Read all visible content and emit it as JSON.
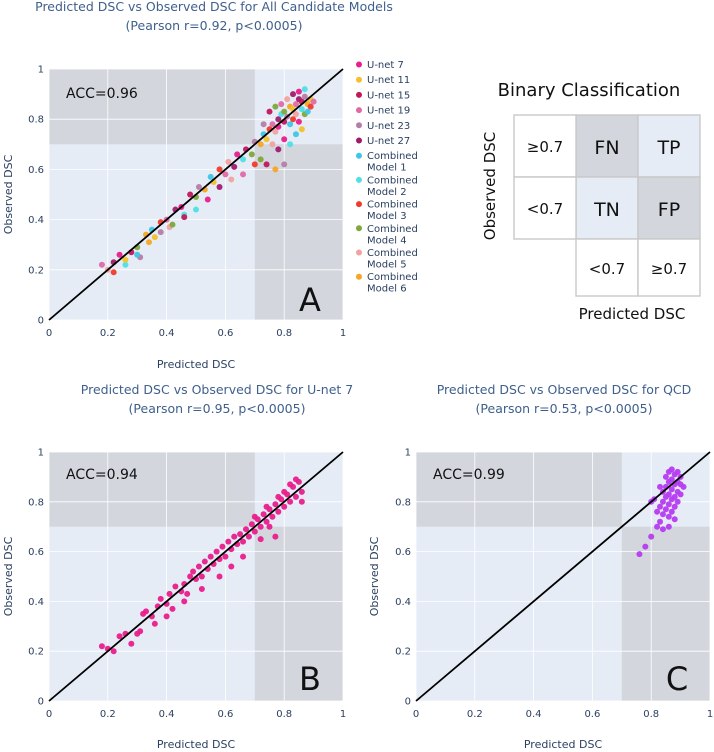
{
  "chart_data": [
    {
      "type": "scatter",
      "title": "Predicted DSC vs Observed DSC for All Candidate Models",
      "subtitle": "(Pearson r=0.92, p<0.0005)",
      "xlabel": "Predicted DSC",
      "ylabel": "Observed DSC",
      "xlim": [
        0,
        1
      ],
      "ylim": [
        0,
        1
      ],
      "xticks": [
        "0",
        "0.2",
        "0.4",
        "0.6",
        "0.8",
        "1"
      ],
      "yticks": [
        "0",
        "0.2",
        "0.4",
        "0.6",
        "0.8",
        "1"
      ],
      "threshold": 0.7,
      "accuracy_label": "ACC=0.96",
      "panel_label": "A",
      "legend": [
        {
          "name": "U-net 7",
          "color": "#e91e8c"
        },
        {
          "name": "U-net 11",
          "color": "#f2c12e"
        },
        {
          "name": "U-net 15",
          "color": "#c2185b"
        },
        {
          "name": "U-net 19",
          "color": "#e06aa6"
        },
        {
          "name": "U-net 23",
          "color": "#b57ea6"
        },
        {
          "name": "U-net 27",
          "color": "#a01c6b"
        },
        {
          "name": "Combined Model 1",
          "color": "#3ec6e8"
        },
        {
          "name": "Combined Model 2",
          "color": "#4fe0e6"
        },
        {
          "name": "Combined Model 3",
          "color": "#ef3b2c"
        },
        {
          "name": "Combined Model 4",
          "color": "#7ea83a"
        },
        {
          "name": "Combined Model 5",
          "color": "#f0a3a0"
        },
        {
          "name": "Combined Model 6",
          "color": "#f5a623"
        }
      ],
      "points": [
        [
          0.18,
          0.22
        ],
        [
          0.2,
          0.2
        ],
        [
          0.22,
          0.23
        ],
        [
          0.24,
          0.26
        ],
        [
          0.26,
          0.22
        ],
        [
          0.28,
          0.27
        ],
        [
          0.3,
          0.29
        ],
        [
          0.31,
          0.25
        ],
        [
          0.33,
          0.34
        ],
        [
          0.35,
          0.36
        ],
        [
          0.36,
          0.33
        ],
        [
          0.38,
          0.39
        ],
        [
          0.4,
          0.4
        ],
        [
          0.41,
          0.37
        ],
        [
          0.43,
          0.44
        ],
        [
          0.45,
          0.45
        ],
        [
          0.46,
          0.42
        ],
        [
          0.48,
          0.5
        ],
        [
          0.5,
          0.49
        ],
        [
          0.51,
          0.53
        ],
        [
          0.53,
          0.52
        ],
        [
          0.55,
          0.57
        ],
        [
          0.56,
          0.55
        ],
        [
          0.58,
          0.6
        ],
        [
          0.6,
          0.58
        ],
        [
          0.61,
          0.63
        ],
        [
          0.63,
          0.61
        ],
        [
          0.64,
          0.66
        ],
        [
          0.66,
          0.64
        ],
        [
          0.67,
          0.68
        ],
        [
          0.69,
          0.66
        ],
        [
          0.7,
          0.71
        ],
        [
          0.72,
          0.7
        ],
        [
          0.73,
          0.74
        ],
        [
          0.74,
          0.72
        ],
        [
          0.75,
          0.76
        ],
        [
          0.76,
          0.78
        ],
        [
          0.77,
          0.75
        ],
        [
          0.78,
          0.8
        ],
        [
          0.78,
          0.77
        ],
        [
          0.79,
          0.82
        ],
        [
          0.8,
          0.79
        ],
        [
          0.8,
          0.83
        ],
        [
          0.81,
          0.81
        ],
        [
          0.82,
          0.85
        ],
        [
          0.82,
          0.78
        ],
        [
          0.83,
          0.84
        ],
        [
          0.83,
          0.8
        ],
        [
          0.84,
          0.86
        ],
        [
          0.84,
          0.82
        ],
        [
          0.85,
          0.88
        ],
        [
          0.85,
          0.79
        ],
        [
          0.86,
          0.84
        ],
        [
          0.86,
          0.87
        ],
        [
          0.87,
          0.82
        ],
        [
          0.87,
          0.89
        ],
        [
          0.88,
          0.86
        ],
        [
          0.88,
          0.83
        ],
        [
          0.89,
          0.88
        ],
        [
          0.89,
          0.85
        ],
        [
          0.9,
          0.87
        ],
        [
          0.76,
          0.7
        ],
        [
          0.78,
          0.68
        ],
        [
          0.8,
          0.72
        ],
        [
          0.82,
          0.7
        ],
        [
          0.74,
          0.62
        ],
        [
          0.72,
          0.64
        ],
        [
          0.8,
          0.62
        ],
        [
          0.77,
          0.6
        ],
        [
          0.84,
          0.74
        ],
        [
          0.86,
          0.76
        ],
        [
          0.7,
          0.62
        ],
        [
          0.66,
          0.58
        ],
        [
          0.62,
          0.56
        ],
        [
          0.58,
          0.53
        ],
        [
          0.54,
          0.48
        ],
        [
          0.5,
          0.44
        ],
        [
          0.46,
          0.41
        ],
        [
          0.42,
          0.38
        ],
        [
          0.38,
          0.35
        ],
        [
          0.34,
          0.31
        ],
        [
          0.3,
          0.26
        ],
        [
          0.26,
          0.24
        ],
        [
          0.22,
          0.19
        ],
        [
          0.79,
          0.86
        ],
        [
          0.81,
          0.88
        ],
        [
          0.83,
          0.9
        ],
        [
          0.85,
          0.91
        ],
        [
          0.87,
          0.92
        ],
        [
          0.75,
          0.83
        ],
        [
          0.77,
          0.85
        ],
        [
          0.73,
          0.78
        ]
      ]
    },
    {
      "type": "scatter",
      "title": "Predicted DSC vs Observed DSC for U-net 7",
      "subtitle": "(Pearson r=0.95, p<0.0005)",
      "xlabel": "Predicted DSC",
      "ylabel": "Observed DSC",
      "xlim": [
        0,
        1
      ],
      "ylim": [
        0,
        1
      ],
      "xticks": [
        "0",
        "0.2",
        "0.4",
        "0.6",
        "0.8",
        "1"
      ],
      "yticks": [
        "0",
        "0.2",
        "0.4",
        "0.6",
        "0.8",
        "1"
      ],
      "threshold": 0.7,
      "accuracy_label": "ACC=0.94",
      "panel_label": "B",
      "color": "#e91e8c",
      "points": [
        [
          0.18,
          0.22
        ],
        [
          0.2,
          0.21
        ],
        [
          0.22,
          0.2
        ],
        [
          0.24,
          0.26
        ],
        [
          0.26,
          0.27
        ],
        [
          0.28,
          0.23
        ],
        [
          0.31,
          0.28
        ],
        [
          0.32,
          0.35
        ],
        [
          0.33,
          0.36
        ],
        [
          0.35,
          0.34
        ],
        [
          0.37,
          0.38
        ],
        [
          0.38,
          0.41
        ],
        [
          0.4,
          0.39
        ],
        [
          0.41,
          0.43
        ],
        [
          0.42,
          0.37
        ],
        [
          0.43,
          0.46
        ],
        [
          0.45,
          0.44
        ],
        [
          0.46,
          0.47
        ],
        [
          0.47,
          0.43
        ],
        [
          0.48,
          0.5
        ],
        [
          0.49,
          0.52
        ],
        [
          0.5,
          0.49
        ],
        [
          0.51,
          0.54
        ],
        [
          0.52,
          0.5
        ],
        [
          0.53,
          0.56
        ],
        [
          0.54,
          0.53
        ],
        [
          0.55,
          0.58
        ],
        [
          0.56,
          0.55
        ],
        [
          0.57,
          0.6
        ],
        [
          0.58,
          0.57
        ],
        [
          0.59,
          0.62
        ],
        [
          0.6,
          0.58
        ],
        [
          0.61,
          0.64
        ],
        [
          0.62,
          0.61
        ],
        [
          0.63,
          0.66
        ],
        [
          0.64,
          0.63
        ],
        [
          0.65,
          0.67
        ],
        [
          0.66,
          0.64
        ],
        [
          0.67,
          0.69
        ],
        [
          0.68,
          0.66
        ],
        [
          0.69,
          0.71
        ],
        [
          0.7,
          0.68
        ],
        [
          0.71,
          0.73
        ],
        [
          0.72,
          0.7
        ],
        [
          0.73,
          0.75
        ],
        [
          0.74,
          0.72
        ],
        [
          0.75,
          0.77
        ],
        [
          0.76,
          0.74
        ],
        [
          0.77,
          0.79
        ],
        [
          0.78,
          0.76
        ],
        [
          0.79,
          0.81
        ],
        [
          0.8,
          0.78
        ],
        [
          0.81,
          0.83
        ],
        [
          0.82,
          0.8
        ],
        [
          0.83,
          0.86
        ],
        [
          0.84,
          0.82
        ],
        [
          0.85,
          0.88
        ],
        [
          0.86,
          0.84
        ],
        [
          0.75,
          0.7
        ],
        [
          0.77,
          0.66
        ],
        [
          0.72,
          0.65
        ],
        [
          0.66,
          0.58
        ],
        [
          0.62,
          0.54
        ],
        [
          0.58,
          0.5
        ],
        [
          0.52,
          0.45
        ],
        [
          0.46,
          0.4
        ],
        [
          0.4,
          0.34
        ],
        [
          0.36,
          0.31
        ],
        [
          0.3,
          0.27
        ],
        [
          0.8,
          0.84
        ],
        [
          0.82,
          0.87
        ],
        [
          0.84,
          0.89
        ],
        [
          0.78,
          0.82
        ],
        [
          0.86,
          0.8
        ],
        [
          0.74,
          0.78
        ],
        [
          0.7,
          0.74
        ]
      ]
    },
    {
      "type": "scatter",
      "title": "Predicted DSC vs Observed DSC for QCD",
      "subtitle": "(Pearson r=0.53, p<0.0005)",
      "xlabel": "Predicted DSC",
      "ylabel": "Observed DSC",
      "xlim": [
        0,
        1
      ],
      "ylim": [
        0,
        1
      ],
      "xticks": [
        "0",
        "0.2",
        "0.4",
        "0.6",
        "0.8",
        "1"
      ],
      "yticks": [
        "0",
        "0.2",
        "0.4",
        "0.6",
        "0.8",
        "1"
      ],
      "threshold": 0.7,
      "accuracy_label": "ACC=0.99",
      "panel_label": "C",
      "color": "#b53cf0",
      "points": [
        [
          0.76,
          0.59
        ],
        [
          0.78,
          0.62
        ],
        [
          0.8,
          0.66
        ],
        [
          0.82,
          0.7
        ],
        [
          0.83,
          0.72
        ],
        [
          0.83,
          0.78
        ],
        [
          0.84,
          0.75
        ],
        [
          0.84,
          0.8
        ],
        [
          0.84,
          0.84
        ],
        [
          0.85,
          0.77
        ],
        [
          0.85,
          0.82
        ],
        [
          0.85,
          0.86
        ],
        [
          0.85,
          0.9
        ],
        [
          0.86,
          0.74
        ],
        [
          0.86,
          0.79
        ],
        [
          0.86,
          0.83
        ],
        [
          0.86,
          0.88
        ],
        [
          0.86,
          0.92
        ],
        [
          0.87,
          0.76
        ],
        [
          0.87,
          0.81
        ],
        [
          0.87,
          0.85
        ],
        [
          0.87,
          0.89
        ],
        [
          0.87,
          0.93
        ],
        [
          0.88,
          0.78
        ],
        [
          0.88,
          0.82
        ],
        [
          0.88,
          0.87
        ],
        [
          0.88,
          0.91
        ],
        [
          0.89,
          0.8
        ],
        [
          0.89,
          0.84
        ],
        [
          0.89,
          0.88
        ],
        [
          0.89,
          0.92
        ],
        [
          0.9,
          0.83
        ],
        [
          0.9,
          0.87
        ],
        [
          0.9,
          0.9
        ],
        [
          0.91,
          0.86
        ],
        [
          0.84,
          0.69
        ],
        [
          0.82,
          0.76
        ],
        [
          0.81,
          0.81
        ],
        [
          0.86,
          0.7
        ],
        [
          0.88,
          0.73
        ],
        [
          0.83,
          0.86
        ],
        [
          0.8,
          0.8
        ]
      ]
    }
  ],
  "binary_classification": {
    "title": "Binary Classification",
    "ylabel": "Observed DSC",
    "xlabel": "Predicted DSC",
    "row_labels": [
      "≥0.7",
      "<0.7"
    ],
    "col_labels": [
      "<0.7",
      "≥0.7"
    ],
    "cells": [
      [
        "FN",
        "TP"
      ],
      [
        "TN",
        "FP"
      ]
    ]
  }
}
